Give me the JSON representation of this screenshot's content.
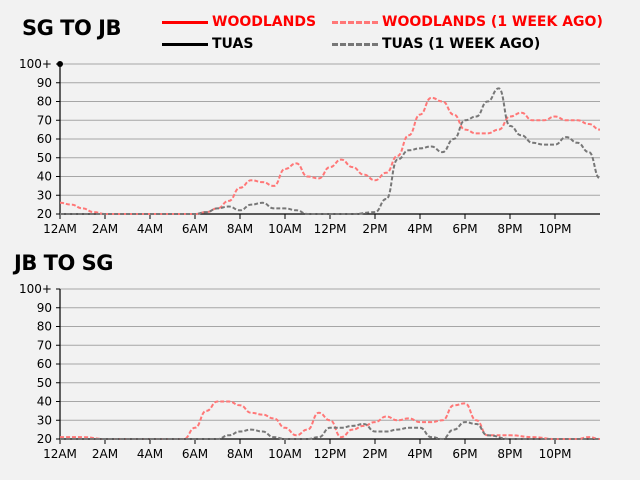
{
  "legend": {
    "woodlands": {
      "label": "WOODLANDS",
      "color": "#ff0000",
      "style": "solid"
    },
    "woodlands_week_ago": {
      "label": "WOODLANDS (1 WEEK AGO)",
      "color": "#ff7777",
      "style": "dashed"
    },
    "tuas": {
      "label": "TUAS",
      "color": "#000000",
      "style": "solid"
    },
    "tuas_week_ago": {
      "label": "TUAS (1 WEEK AGO)",
      "color": "#777777",
      "style": "dashed"
    }
  },
  "chart_data": [
    {
      "title": "SG TO JB",
      "type": "line",
      "xlabel": "",
      "ylabel": "",
      "xlim": [
        0,
        24
      ],
      "ylim": [
        20,
        100
      ],
      "xticks": [
        0,
        2,
        4,
        6,
        8,
        10,
        12,
        14,
        16,
        18,
        20,
        22
      ],
      "xtick_labels": [
        "12AM",
        "2AM",
        "4AM",
        "6AM",
        "8AM",
        "10AM",
        "12PM",
        "2PM",
        "4PM",
        "6PM",
        "8PM",
        "10PM"
      ],
      "yticks": [
        20,
        30,
        40,
        50,
        60,
        70,
        80,
        90,
        100
      ],
      "ytick_labels": [
        "20",
        "30",
        "40",
        "50",
        "60",
        "70",
        "80",
        "90",
        "100+"
      ],
      "grid": "horizontal",
      "series": [
        {
          "name": "WOODLANDS (1 WEEK AGO)",
          "color": "#ff7777",
          "style": "dashed",
          "x": [
            0,
            0.5,
            1,
            1.5,
            2,
            3,
            4,
            5,
            5.5,
            6,
            6.5,
            7,
            7.5,
            8,
            8.5,
            9,
            9.5,
            10,
            10.5,
            11,
            11.5,
            12,
            12.5,
            13,
            13.5,
            14,
            14.5,
            15,
            15.5,
            16,
            16.5,
            17,
            17.5,
            18,
            18.5,
            19,
            19.5,
            20,
            20.5,
            21,
            21.5,
            22,
            22.5,
            23,
            23.5,
            24
          ],
          "y": [
            26,
            25,
            23,
            21,
            20,
            20,
            20,
            20,
            20,
            20,
            21,
            23,
            27,
            34,
            38,
            37,
            35,
            44,
            47,
            40,
            39,
            45,
            49,
            45,
            41,
            38,
            42,
            51,
            62,
            73,
            82,
            80,
            73,
            65,
            63,
            63,
            65,
            72,
            74,
            70,
            70,
            72,
            70,
            70,
            68,
            65
          ]
        },
        {
          "name": "TUAS (1 WEEK AGO)",
          "color": "#777777",
          "style": "dashed",
          "x": [
            0,
            2,
            4,
            6,
            6.5,
            7,
            7.5,
            8,
            8.5,
            9,
            9.5,
            10,
            10.5,
            11,
            12,
            13,
            14,
            14.5,
            15,
            15.5,
            16,
            16.5,
            17,
            17.5,
            18,
            18.5,
            19,
            19.5,
            20,
            20.5,
            21,
            21.5,
            22,
            22.5,
            23,
            23.5,
            24
          ],
          "y": [
            20,
            20,
            20,
            20,
            21,
            23,
            24,
            22,
            25,
            26,
            23,
            23,
            22,
            20,
            20,
            20,
            21,
            28,
            49,
            54,
            55,
            56,
            53,
            60,
            70,
            72,
            80,
            87,
            67,
            62,
            58,
            57,
            57,
            61,
            58,
            53,
            39
          ]
        }
      ]
    },
    {
      "title": "JB TO SG",
      "type": "line",
      "xlabel": "",
      "ylabel": "",
      "xlim": [
        0,
        24
      ],
      "ylim": [
        20,
        100
      ],
      "xticks": [
        0,
        2,
        4,
        6,
        8,
        10,
        12,
        14,
        16,
        18,
        20,
        22
      ],
      "xtick_labels": [
        "12AM",
        "2AM",
        "4AM",
        "6AM",
        "8AM",
        "10AM",
        "12PM",
        "2PM",
        "4PM",
        "6PM",
        "8PM",
        "10PM"
      ],
      "yticks": [
        20,
        30,
        40,
        50,
        60,
        70,
        80,
        90,
        100
      ],
      "ytick_labels": [
        "20",
        "30",
        "40",
        "50",
        "60",
        "70",
        "80",
        "90",
        "100+"
      ],
      "grid": "horizontal",
      "series": [
        {
          "name": "WOODLANDS (1 WEEK AGO)",
          "color": "#ff7777",
          "style": "dashed",
          "x": [
            0,
            1,
            2,
            3,
            4,
            5,
            5.5,
            6,
            6.5,
            7,
            7.5,
            8,
            8.5,
            9,
            9.5,
            10,
            10.5,
            11,
            11.5,
            12,
            12.5,
            13,
            13.5,
            14,
            14.5,
            15,
            15.5,
            16,
            16.5,
            17,
            17.5,
            18,
            18.5,
            19,
            20,
            21,
            22,
            23,
            23.5,
            24
          ],
          "y": [
            21,
            21,
            20,
            20,
            20,
            20,
            20,
            26,
            35,
            40,
            40,
            38,
            34,
            33,
            31,
            26,
            22,
            25,
            34,
            30,
            21,
            25,
            27,
            29,
            32,
            30,
            31,
            29,
            29,
            30,
            38,
            39,
            30,
            22,
            22,
            21,
            20,
            20,
            21,
            20
          ]
        },
        {
          "name": "TUAS (1 WEEK AGO)",
          "color": "#777777",
          "style": "dashed",
          "x": [
            0,
            2,
            4,
            6,
            7,
            7.5,
            8,
            8.5,
            9,
            9.5,
            10,
            11,
            11.5,
            12,
            12.5,
            13,
            13.5,
            14,
            14.5,
            15,
            15.5,
            16,
            16.5,
            17,
            17.5,
            18,
            18.5,
            19,
            20,
            22,
            24
          ],
          "y": [
            20,
            20,
            20,
            20,
            20,
            22,
            24,
            25,
            24,
            21,
            20,
            20,
            21,
            26,
            26,
            27,
            28,
            24,
            24,
            25,
            26,
            26,
            21,
            20,
            25,
            29,
            28,
            22,
            20,
            20,
            20
          ]
        }
      ]
    }
  ]
}
